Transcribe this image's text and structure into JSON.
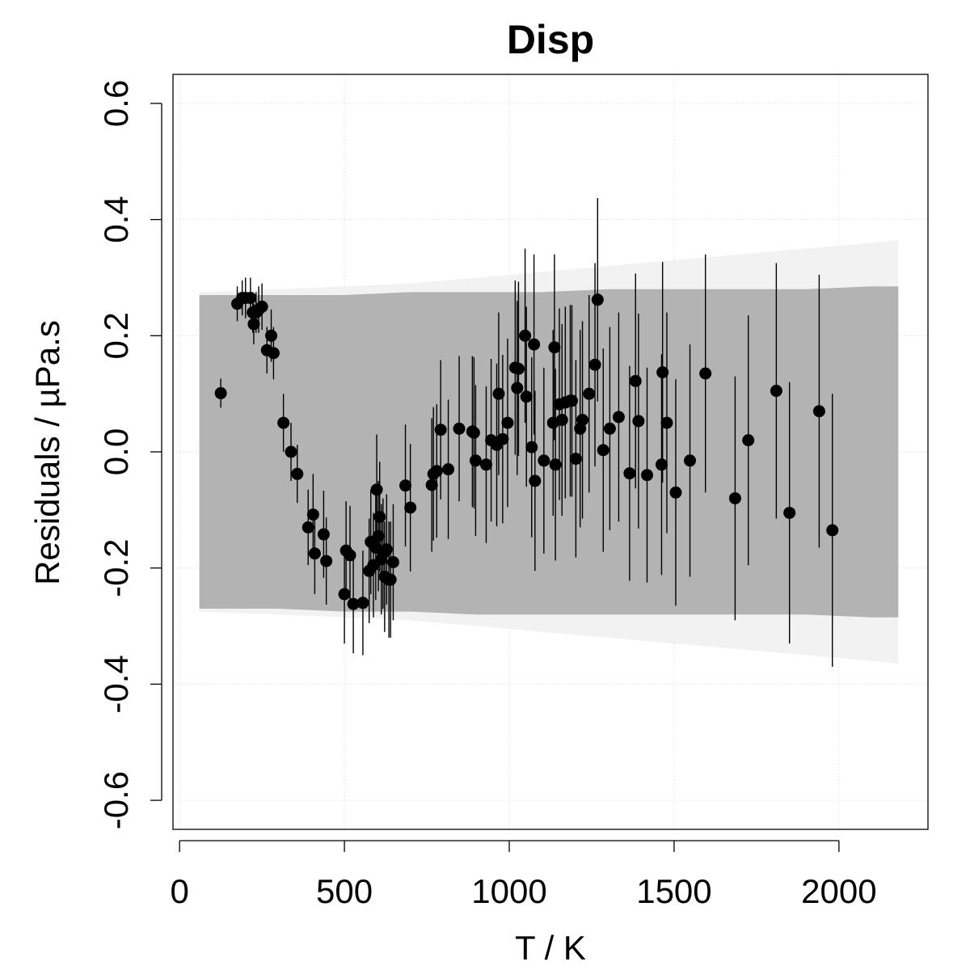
{
  "chart_data": {
    "type": "scatter",
    "title": "Disp",
    "xlabel": "T / K",
    "ylabel": "Residuals / µPa.s",
    "xlim": [
      -20,
      2270
    ],
    "ylim": [
      -0.65,
      0.65
    ],
    "xticks": [
      0,
      500,
      1000,
      1500,
      2000
    ],
    "yticks": [
      -0.6,
      -0.4,
      -0.2,
      0.0,
      0.2,
      0.4,
      0.6
    ],
    "xtick_labels": [
      "0",
      "500",
      "1000",
      "1500",
      "2000"
    ],
    "ytick_labels": [
      "-0.6",
      "-0.4",
      "-0.2",
      "0.0",
      "0.2",
      "0.4",
      "0.6"
    ],
    "grid": true,
    "band_outer": {
      "x": [
        60,
        300,
        500,
        700,
        900,
        1100,
        1300,
        1500,
        1700,
        1900,
        2100,
        2180
      ],
      "upper": [
        0.275,
        0.28,
        0.285,
        0.29,
        0.3,
        0.31,
        0.32,
        0.33,
        0.34,
        0.35,
        0.36,
        0.365
      ],
      "lower": [
        -0.275,
        -0.28,
        -0.285,
        -0.29,
        -0.3,
        -0.31,
        -0.32,
        -0.33,
        -0.34,
        -0.35,
        -0.36,
        -0.365
      ]
    },
    "band_inner": {
      "x": [
        60,
        300,
        500,
        700,
        900,
        1100,
        1300,
        1500,
        1700,
        1900,
        2100,
        2180
      ],
      "upper": [
        0.27,
        0.27,
        0.27,
        0.275,
        0.275,
        0.275,
        0.28,
        0.28,
        0.28,
        0.28,
        0.285,
        0.285
      ],
      "lower": [
        -0.27,
        -0.27,
        -0.275,
        -0.275,
        -0.28,
        -0.28,
        -0.28,
        -0.28,
        -0.28,
        -0.28,
        -0.285,
        -0.285
      ]
    },
    "points": [
      {
        "x": 125,
        "y": 0.101,
        "err": 0.025
      },
      {
        "x": 175,
        "y": 0.255,
        "err": 0.03
      },
      {
        "x": 190,
        "y": 0.265,
        "err": 0.03
      },
      {
        "x": 200,
        "y": 0.265,
        "err": 0.035
      },
      {
        "x": 215,
        "y": 0.265,
        "err": 0.035
      },
      {
        "x": 222,
        "y": 0.24,
        "err": 0.035
      },
      {
        "x": 225,
        "y": 0.22,
        "err": 0.035
      },
      {
        "x": 232,
        "y": 0.24,
        "err": 0.035
      },
      {
        "x": 240,
        "y": 0.245,
        "err": 0.04
      },
      {
        "x": 250,
        "y": 0.25,
        "err": 0.04
      },
      {
        "x": 265,
        "y": 0.175,
        "err": 0.04
      },
      {
        "x": 278,
        "y": 0.2,
        "err": 0.045
      },
      {
        "x": 285,
        "y": 0.17,
        "err": 0.045
      },
      {
        "x": 315,
        "y": 0.05,
        "err": 0.05
      },
      {
        "x": 338,
        "y": 0.0,
        "err": 0.05
      },
      {
        "x": 357,
        "y": -0.038,
        "err": 0.05
      },
      {
        "x": 390,
        "y": -0.13,
        "err": 0.065
      },
      {
        "x": 405,
        "y": -0.108,
        "err": 0.07
      },
      {
        "x": 410,
        "y": -0.175,
        "err": 0.07
      },
      {
        "x": 437,
        "y": -0.142,
        "err": 0.075
      },
      {
        "x": 445,
        "y": -0.188,
        "err": 0.075
      },
      {
        "x": 500,
        "y": -0.245,
        "err": 0.085
      },
      {
        "x": 505,
        "y": -0.17,
        "err": 0.085
      },
      {
        "x": 517,
        "y": -0.178,
        "err": 0.085
      },
      {
        "x": 527,
        "y": -0.262,
        "err": 0.085
      },
      {
        "x": 556,
        "y": -0.26,
        "err": 0.09
      },
      {
        "x": 575,
        "y": -0.205,
        "err": 0.09
      },
      {
        "x": 580,
        "y": -0.155,
        "err": 0.09
      },
      {
        "x": 588,
        "y": -0.195,
        "err": 0.09
      },
      {
        "x": 595,
        "y": -0.165,
        "err": 0.09
      },
      {
        "x": 598,
        "y": -0.065,
        "err": 0.095
      },
      {
        "x": 603,
        "y": -0.145,
        "err": 0.095
      },
      {
        "x": 607,
        "y": -0.112,
        "err": 0.095
      },
      {
        "x": 612,
        "y": -0.185,
        "err": 0.095
      },
      {
        "x": 617,
        "y": -0.175,
        "err": 0.095
      },
      {
        "x": 622,
        "y": -0.215,
        "err": 0.095
      },
      {
        "x": 628,
        "y": -0.168,
        "err": 0.095
      },
      {
        "x": 635,
        "y": -0.22,
        "err": 0.1
      },
      {
        "x": 640,
        "y": -0.22,
        "err": 0.1
      },
      {
        "x": 648,
        "y": -0.19,
        "err": 0.1
      },
      {
        "x": 685,
        "y": -0.058,
        "err": 0.105
      },
      {
        "x": 700,
        "y": -0.096,
        "err": 0.11
      },
      {
        "x": 765,
        "y": -0.057,
        "err": 0.115
      },
      {
        "x": 770,
        "y": -0.038,
        "err": 0.115
      },
      {
        "x": 780,
        "y": -0.033,
        "err": 0.115
      },
      {
        "x": 792,
        "y": 0.038,
        "err": 0.12
      },
      {
        "x": 815,
        "y": -0.03,
        "err": 0.12
      },
      {
        "x": 848,
        "y": 0.04,
        "err": 0.125
      },
      {
        "x": 888,
        "y": 0.035,
        "err": 0.13
      },
      {
        "x": 893,
        "y": 0.033,
        "err": 0.13
      },
      {
        "x": 898,
        "y": -0.015,
        "err": 0.13
      },
      {
        "x": 930,
        "y": -0.022,
        "err": 0.135
      },
      {
        "x": 945,
        "y": 0.02,
        "err": 0.14
      },
      {
        "x": 962,
        "y": 0.012,
        "err": 0.14
      },
      {
        "x": 968,
        "y": 0.1,
        "err": 0.14
      },
      {
        "x": 980,
        "y": 0.022,
        "err": 0.145
      },
      {
        "x": 995,
        "y": 0.05,
        "err": 0.145
      },
      {
        "x": 1018,
        "y": 0.145,
        "err": 0.15
      },
      {
        "x": 1024,
        "y": 0.11,
        "err": 0.15
      },
      {
        "x": 1028,
        "y": 0.143,
        "err": 0.15
      },
      {
        "x": 1048,
        "y": 0.2,
        "err": 0.15
      },
      {
        "x": 1052,
        "y": 0.095,
        "err": 0.155
      },
      {
        "x": 1068,
        "y": 0.008,
        "err": 0.155
      },
      {
        "x": 1075,
        "y": 0.185,
        "err": 0.155
      },
      {
        "x": 1078,
        "y": -0.05,
        "err": 0.155
      },
      {
        "x": 1105,
        "y": -0.015,
        "err": 0.16
      },
      {
        "x": 1133,
        "y": 0.05,
        "err": 0.16
      },
      {
        "x": 1137,
        "y": 0.18,
        "err": 0.16
      },
      {
        "x": 1140,
        "y": -0.022,
        "err": 0.165
      },
      {
        "x": 1152,
        "y": 0.082,
        "err": 0.165
      },
      {
        "x": 1160,
        "y": 0.055,
        "err": 0.165
      },
      {
        "x": 1170,
        "y": 0.085,
        "err": 0.165
      },
      {
        "x": 1185,
        "y": 0.088,
        "err": 0.165
      },
      {
        "x": 1190,
        "y": 0.088,
        "err": 0.165
      },
      {
        "x": 1202,
        "y": -0.012,
        "err": 0.17
      },
      {
        "x": 1215,
        "y": 0.04,
        "err": 0.17
      },
      {
        "x": 1222,
        "y": 0.055,
        "err": 0.17
      },
      {
        "x": 1242,
        "y": 0.1,
        "err": 0.17
      },
      {
        "x": 1260,
        "y": 0.15,
        "err": 0.175
      },
      {
        "x": 1268,
        "y": 0.262,
        "err": 0.175
      },
      {
        "x": 1285,
        "y": 0.003,
        "err": 0.175
      },
      {
        "x": 1305,
        "y": 0.04,
        "err": 0.175
      },
      {
        "x": 1332,
        "y": 0.06,
        "err": 0.18
      },
      {
        "x": 1365,
        "y": -0.037,
        "err": 0.185
      },
      {
        "x": 1383,
        "y": 0.122,
        "err": 0.185
      },
      {
        "x": 1392,
        "y": 0.053,
        "err": 0.185
      },
      {
        "x": 1418,
        "y": -0.04,
        "err": 0.185
      },
      {
        "x": 1462,
        "y": -0.022,
        "err": 0.19
      },
      {
        "x": 1465,
        "y": 0.137,
        "err": 0.19
      },
      {
        "x": 1478,
        "y": 0.05,
        "err": 0.19
      },
      {
        "x": 1505,
        "y": -0.07,
        "err": 0.195
      },
      {
        "x": 1548,
        "y": -0.015,
        "err": 0.2
      },
      {
        "x": 1595,
        "y": 0.135,
        "err": 0.205
      },
      {
        "x": 1685,
        "y": -0.08,
        "err": 0.21
      },
      {
        "x": 1725,
        "y": 0.02,
        "err": 0.215
      },
      {
        "x": 1810,
        "y": 0.105,
        "err": 0.22
      },
      {
        "x": 1850,
        "y": -0.105,
        "err": 0.225
      },
      {
        "x": 1940,
        "y": 0.07,
        "err": 0.235
      },
      {
        "x": 1980,
        "y": -0.135,
        "err": 0.235
      }
    ]
  }
}
